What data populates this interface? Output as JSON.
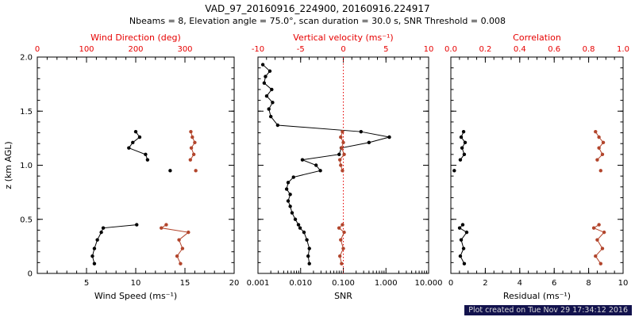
{
  "header": {
    "title": "VAD_97_20160916_224900, 20160916.224917",
    "subtitle": "Nbeams = 8, Elevation angle = 75.0°, scan duration = 30.0 s, SNR Threshold = 0.008"
  },
  "footer": {
    "created": "Plot created on Tue Nov 29 17:34:12 2016"
  },
  "colors": {
    "axis_red": "#e60000",
    "series_red": "#b2452c",
    "series_black": "#000000",
    "background": "#ffffff",
    "footer_bg": "#12124d",
    "footer_fg": "#d9d9d9"
  },
  "chart_data": [
    {
      "type": "line",
      "name": "wind-panel",
      "ylabel": "z (km AGL)",
      "y_range": [
        0,
        2
      ],
      "y_ticks": [
        0,
        0.5,
        1.0,
        1.5,
        2.0
      ],
      "y_tick_labels": [
        "0",
        "0.5",
        "1.0",
        "1.5",
        "2.0"
      ],
      "bottom_axis": {
        "label": "Wind Speed (ms⁻¹)",
        "scale": "linear",
        "range": [
          0,
          20
        ],
        "ticks": [
          5,
          10,
          15,
          20
        ],
        "tick_labels": [
          "5",
          "10",
          "15",
          "20"
        ],
        "minor_step": 1,
        "color": "black"
      },
      "top_axis": {
        "label": "Wind Direction (deg)",
        "scale": "linear",
        "range": [
          0,
          400
        ],
        "ticks": [
          0,
          100,
          200,
          300
        ],
        "tick_labels": [
          "0",
          "100",
          "200",
          "300"
        ],
        "minor_step": 20,
        "color": "red"
      },
      "series": [
        {
          "name": "wind_speed",
          "axis": "bottom",
          "color": "black",
          "segments": [
            [
              [
                5.8,
                0.09
              ],
              [
                5.6,
                0.16
              ],
              [
                5.8,
                0.23
              ],
              [
                6.1,
                0.31
              ],
              [
                6.5,
                0.38
              ],
              [
                6.7,
                0.42
              ],
              [
                10.1,
                0.45
              ]
            ],
            [
              [
                13.5,
                0.95
              ]
            ],
            [
              [
                11.2,
                1.05
              ],
              [
                11.0,
                1.1
              ],
              [
                9.3,
                1.16
              ],
              [
                9.7,
                1.21
              ],
              [
                10.4,
                1.26
              ],
              [
                10.0,
                1.31
              ]
            ]
          ]
        },
        {
          "name": "wind_direction",
          "axis": "top",
          "color": "red",
          "segments": [
            [
              [
                291,
                0.09
              ],
              [
                284,
                0.16
              ],
              [
                295,
                0.23
              ],
              [
                288,
                0.31
              ],
              [
                307,
                0.38
              ],
              [
                252,
                0.42
              ],
              [
                262,
                0.45
              ]
            ],
            [
              [
                322,
                0.95
              ]
            ],
            [
              [
                311,
                1.05
              ],
              [
                318,
                1.1
              ],
              [
                313,
                1.16
              ],
              [
                320,
                1.21
              ],
              [
                315,
                1.26
              ],
              [
                312,
                1.31
              ]
            ]
          ]
        }
      ]
    },
    {
      "type": "line",
      "name": "snr-panel",
      "y_range": [
        0,
        2
      ],
      "y_ticks": [
        0,
        0.5,
        1.0,
        1.5,
        2.0
      ],
      "bottom_axis": {
        "label": "SNR",
        "scale": "log",
        "range": [
          0.001,
          10
        ],
        "ticks": [
          0.001,
          0.01,
          0.1,
          1,
          10
        ],
        "tick_labels": [
          "0.001",
          "0.010",
          "0.100",
          "1.000",
          "10.000"
        ],
        "color": "black"
      },
      "top_axis": {
        "label": "Vertical velocity (ms⁻¹)",
        "scale": "linear",
        "range": [
          -10,
          10
        ],
        "ticks": [
          -10,
          -5,
          0,
          5,
          10
        ],
        "tick_labels": [
          "-10",
          "-5",
          "0",
          "5",
          "10"
        ],
        "minor_step": 1,
        "color": "red"
      },
      "ref_line": {
        "axis": "top",
        "value": 0,
        "style": "dotted",
        "color": "red"
      },
      "series": [
        {
          "name": "snr",
          "axis": "bottom",
          "color": "black",
          "segments": [
            [
              [
                0.016,
                0.09
              ],
              [
                0.015,
                0.16
              ],
              [
                0.016,
                0.23
              ],
              [
                0.014,
                0.31
              ],
              [
                0.012,
                0.38
              ],
              [
                0.0097,
                0.42
              ],
              [
                0.0089,
                0.45
              ],
              [
                0.0075,
                0.5
              ],
              [
                0.0063,
                0.56
              ],
              [
                0.0057,
                0.62
              ],
              [
                0.0051,
                0.67
              ],
              [
                0.0057,
                0.73
              ],
              [
                0.0047,
                0.78
              ],
              [
                0.0051,
                0.84
              ],
              [
                0.0068,
                0.89
              ],
              [
                0.029,
                0.95
              ],
              [
                0.023,
                1.0
              ],
              [
                0.011,
                1.05
              ],
              [
                0.08,
                1.1
              ],
              [
                0.09,
                1.16
              ],
              [
                0.4,
                1.21
              ],
              [
                1.2,
                1.26
              ],
              [
                0.26,
                1.31
              ],
              [
                0.0029,
                1.37
              ],
              [
                0.002,
                1.45
              ],
              [
                0.0018,
                1.52
              ],
              [
                0.0022,
                1.58
              ],
              [
                0.0016,
                1.64
              ],
              [
                0.0021,
                1.7
              ],
              [
                0.0014,
                1.76
              ],
              [
                0.0015,
                1.82
              ],
              [
                0.0019,
                1.87
              ],
              [
                0.0013,
                1.93
              ]
            ]
          ]
        },
        {
          "name": "vertical_velocity",
          "axis": "top",
          "color": "red",
          "segments": [
            [
              [
                -0.2,
                0.09
              ],
              [
                -0.4,
                0.16
              ],
              [
                0.0,
                0.23
              ],
              [
                -0.3,
                0.31
              ],
              [
                0.1,
                0.38
              ],
              [
                -0.5,
                0.42
              ],
              [
                -0.1,
                0.45
              ]
            ],
            [
              [
                -0.1,
                0.95
              ],
              [
                -0.3,
                1.0
              ],
              [
                -0.4,
                1.05
              ],
              [
                0.1,
                1.1
              ],
              [
                -0.2,
                1.16
              ],
              [
                0.0,
                1.21
              ],
              [
                -0.3,
                1.26
              ],
              [
                -0.1,
                1.31
              ]
            ]
          ]
        }
      ]
    },
    {
      "type": "line",
      "name": "residual-panel",
      "y_range": [
        0,
        2
      ],
      "y_ticks": [
        0,
        0.5,
        1.0,
        1.5,
        2.0
      ],
      "bottom_axis": {
        "label": "Residual (ms⁻¹)",
        "scale": "linear",
        "range": [
          0,
          10
        ],
        "ticks": [
          0,
          2,
          4,
          6,
          8,
          10
        ],
        "tick_labels": [
          "0",
          "2",
          "4",
          "6",
          "8",
          "10"
        ],
        "minor_step": 0.5,
        "color": "black"
      },
      "top_axis": {
        "label": "Correlation",
        "scale": "linear",
        "range": [
          0,
          1
        ],
        "ticks": [
          0,
          0.2,
          0.4,
          0.6,
          0.8,
          1
        ],
        "tick_labels": [
          "0.0",
          "0.2",
          "0.4",
          "0.6",
          "0.8",
          "1.0"
        ],
        "minor_step": 0.05,
        "color": "red"
      },
      "series": [
        {
          "name": "residual",
          "axis": "bottom",
          "color": "black",
          "segments": [
            [
              [
                0.78,
                0.09
              ],
              [
                0.55,
                0.16
              ],
              [
                0.74,
                0.23
              ],
              [
                0.6,
                0.31
              ],
              [
                0.92,
                0.38
              ],
              [
                0.51,
                0.42
              ],
              [
                0.69,
                0.45
              ]
            ],
            [
              [
                0.2,
                0.95
              ]
            ],
            [
              [
                0.55,
                1.05
              ],
              [
                0.78,
                1.1
              ],
              [
                0.65,
                1.16
              ],
              [
                0.83,
                1.21
              ],
              [
                0.6,
                1.26
              ],
              [
                0.74,
                1.31
              ]
            ]
          ]
        },
        {
          "name": "correlation",
          "axis": "top",
          "color": "red",
          "segments": [
            [
              [
                0.87,
                0.09
              ],
              [
                0.84,
                0.16
              ],
              [
                0.88,
                0.23
              ],
              [
                0.85,
                0.31
              ],
              [
                0.89,
                0.38
              ],
              [
                0.83,
                0.42
              ],
              [
                0.86,
                0.45
              ]
            ],
            [
              [
                0.87,
                0.95
              ]
            ],
            [
              [
                0.85,
                1.05
              ],
              [
                0.88,
                1.1
              ],
              [
                0.86,
                1.16
              ],
              [
                0.885,
                1.21
              ],
              [
                0.86,
                1.26
              ],
              [
                0.84,
                1.31
              ]
            ]
          ]
        }
      ]
    }
  ]
}
